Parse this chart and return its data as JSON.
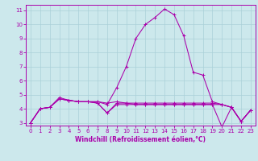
{
  "xlabel": "Windchill (Refroidissement éolien,°C)",
  "background_color": "#cce8ec",
  "grid_color": "#aad0d8",
  "line_color": "#aa00aa",
  "xlim": [
    -0.5,
    23.5
  ],
  "ylim": [
    2.8,
    11.4
  ],
  "yticks": [
    3,
    4,
    5,
    6,
    7,
    8,
    9,
    10,
    11
  ],
  "xticks": [
    0,
    1,
    2,
    3,
    4,
    5,
    6,
    7,
    8,
    9,
    10,
    11,
    12,
    13,
    14,
    15,
    16,
    17,
    18,
    19,
    20,
    21,
    22,
    23
  ],
  "lines": [
    [
      3.0,
      4.0,
      4.1,
      4.8,
      4.6,
      4.5,
      4.5,
      4.5,
      4.3,
      5.5,
      7.0,
      9.0,
      10.0,
      10.5,
      11.1,
      10.7,
      9.2,
      6.6,
      6.4,
      4.5,
      4.3,
      4.1,
      3.1,
      3.9
    ],
    [
      3.0,
      4.0,
      4.1,
      4.7,
      4.6,
      4.5,
      4.5,
      4.5,
      4.4,
      4.5,
      4.4,
      4.4,
      4.4,
      4.4,
      4.4,
      4.4,
      4.4,
      4.4,
      4.4,
      4.4,
      4.3,
      4.1,
      3.1,
      3.9
    ],
    [
      3.0,
      4.0,
      4.1,
      4.7,
      4.6,
      4.5,
      4.5,
      4.4,
      3.7,
      4.3,
      4.3,
      4.3,
      4.3,
      4.3,
      4.3,
      4.3,
      4.3,
      4.3,
      4.3,
      4.3,
      2.7,
      4.1,
      3.1,
      3.9
    ],
    [
      3.0,
      4.0,
      4.1,
      4.7,
      4.6,
      4.5,
      4.5,
      4.4,
      3.7,
      4.4,
      4.4,
      4.3,
      4.3,
      4.3,
      4.3,
      4.3,
      4.3,
      4.3,
      4.3,
      4.3,
      4.3,
      4.1,
      3.1,
      3.9
    ]
  ],
  "xlabel_fontsize": 5.5,
  "tick_fontsize": 5.0
}
